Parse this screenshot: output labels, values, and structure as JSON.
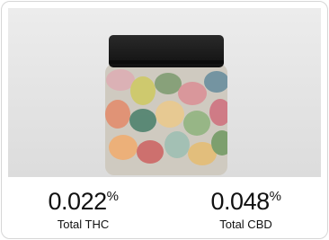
{
  "stats": [
    {
      "value": "0.022",
      "unit": "%",
      "label": "Total THC"
    },
    {
      "value": "0.048",
      "unit": "%",
      "label": "Total CBD"
    }
  ]
}
